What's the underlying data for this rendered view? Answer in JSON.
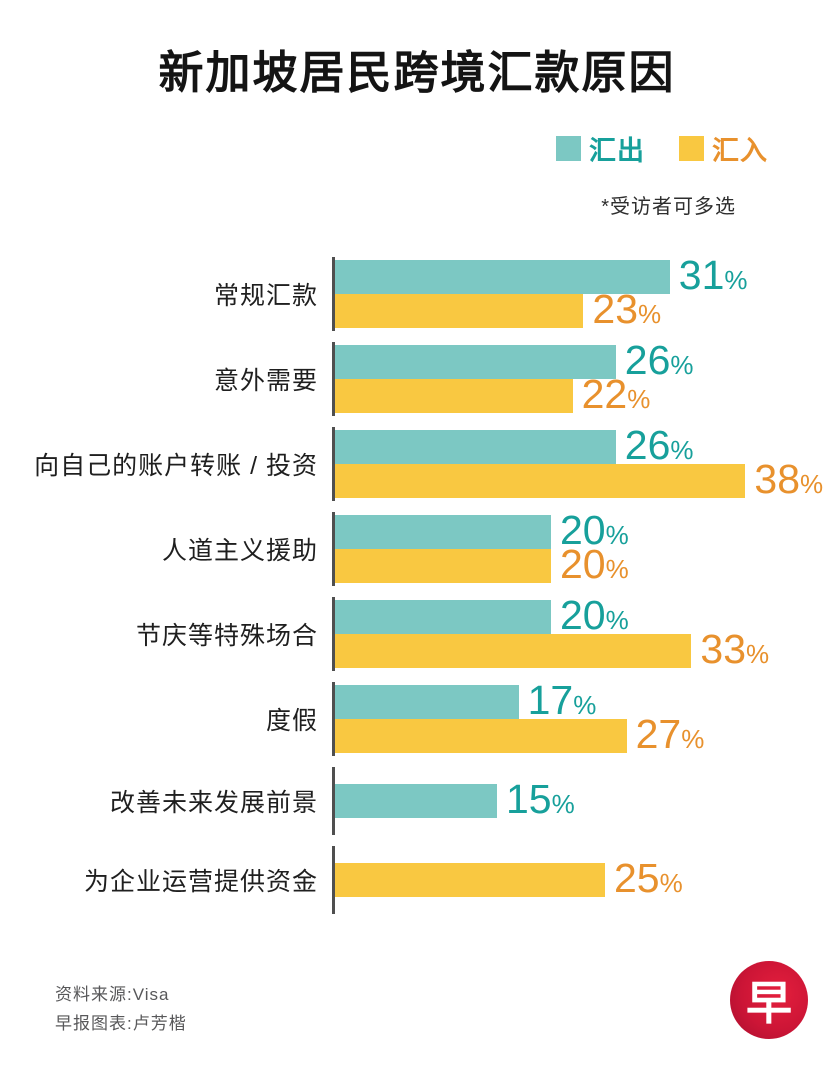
{
  "header": {
    "title": "新加坡居民跨境汇款原因"
  },
  "legend": {
    "outbound_label": "汇出",
    "inbound_label": "汇入",
    "note": "*受访者可多选"
  },
  "colors": {
    "outbound_bar": "#7cc8c3",
    "outbound_text": "#17a09b",
    "inbound_bar": "#f9c841",
    "inbound_text": "#e8912d",
    "axis_line": "#4f4f4f",
    "logo_red": "#cc1536"
  },
  "chart_data": {
    "type": "bar",
    "orientation": "horizontal",
    "title": "新加坡居民跨境汇款原因",
    "note": "*受访者可多选",
    "unit": "%",
    "axis_max": 40,
    "grid": false,
    "legend_position": "top-right",
    "categories": [
      "常规汇款",
      "意外需要",
      "向自己的账户转账 / 投资",
      "人道主义援助",
      "节庆等特殊场合",
      "度假",
      "改善未来发展前景",
      "为企业运营提供资金"
    ],
    "series": [
      {
        "name": "汇出",
        "bar_color": "#7cc8c3",
        "label_color": "#17a09b",
        "values": [
          31,
          26,
          26,
          20,
          20,
          17,
          15,
          null
        ]
      },
      {
        "name": "汇入",
        "bar_color": "#f9c841",
        "label_color": "#e8912d",
        "values": [
          23,
          22,
          38,
          20,
          33,
          27,
          null,
          25
        ]
      }
    ]
  },
  "footer": {
    "source": "资料来源:Visa",
    "credit": "早报图表:卢芳楷",
    "logo_char": "早"
  }
}
